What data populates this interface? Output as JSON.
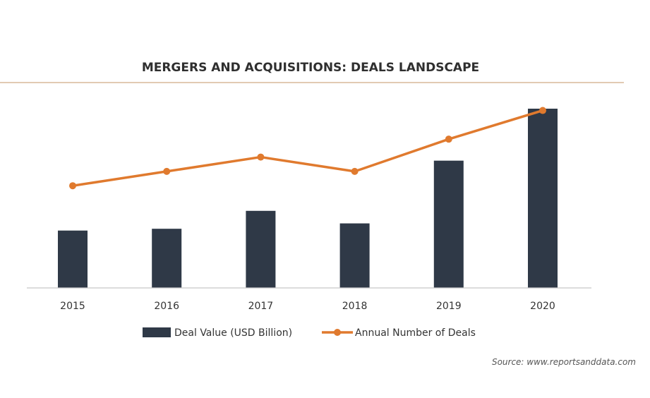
{
  "chart_data": {
    "type": "bar",
    "title": "MERGERS AND ACQUISITIONS: DEALS LANDSCAPE",
    "categories": [
      "2015",
      "2016",
      "2017",
      "2018",
      "2019",
      "2020"
    ],
    "series": [
      {
        "name": "Deal Value (USD Billion)",
        "type": "bar",
        "color": "#2f3947",
        "values": [
          3.2,
          3.3,
          4.3,
          3.6,
          7.1,
          10.0
        ]
      },
      {
        "name": "Annual Number of Deals",
        "type": "line",
        "color": "#e07a2e",
        "values": [
          5.7,
          6.5,
          7.3,
          6.5,
          8.3,
          9.9
        ]
      }
    ],
    "ylim": [
      0,
      10
    ],
    "grid": false,
    "legend_position": "bottom",
    "source": "Source: www.reportsanddata.com"
  }
}
